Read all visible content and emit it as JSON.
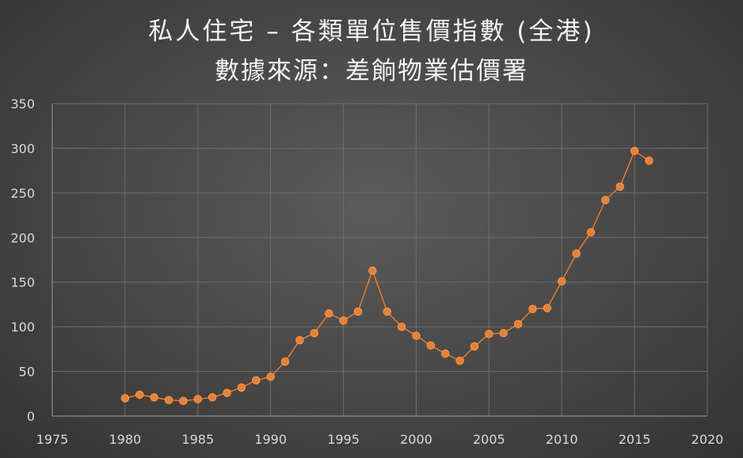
{
  "colors": {
    "background": "#4a4a4a",
    "series": "#f07f2a",
    "grid": "#6e6e6e",
    "text": "#d9d9d9",
    "title": "#f2f2f2"
  },
  "chart_data": {
    "type": "scatter",
    "title_line1": "私人住宅 – 各類單位售價指數 (全港)",
    "title_line2": "數據來源：差餉物業估價署",
    "xlabel": "",
    "ylabel": "",
    "xlim": [
      1975,
      2020
    ],
    "ylim": [
      0,
      350
    ],
    "x_ticks": [
      1975,
      1980,
      1985,
      1990,
      1995,
      2000,
      2005,
      2010,
      2015,
      2020
    ],
    "y_ticks": [
      0,
      50,
      100,
      150,
      200,
      250,
      300,
      350
    ],
    "grid": true,
    "legend": "none",
    "marker": "circle",
    "line": "straight",
    "series": [
      {
        "x": [
          1980,
          1981,
          1982,
          1983,
          1984,
          1985,
          1986,
          1987,
          1988,
          1989,
          1990,
          1991,
          1992,
          1993,
          1994,
          1995,
          1996,
          1997,
          1998,
          1999,
          2000,
          2001,
          2002,
          2003,
          2004,
          2005,
          2006,
          2007,
          2008,
          2009,
          2010,
          2011,
          2012,
          2013,
          2014,
          2015,
          2016
        ],
        "y": [
          20,
          24,
          21,
          18,
          17,
          19,
          21,
          26,
          32,
          40,
          44,
          61,
          85,
          93,
          115,
          107,
          117,
          163,
          117,
          100,
          90,
          79,
          70,
          62,
          78,
          92,
          93,
          103,
          120,
          121,
          151,
          182,
          206,
          242,
          257,
          297,
          286
        ]
      }
    ]
  }
}
